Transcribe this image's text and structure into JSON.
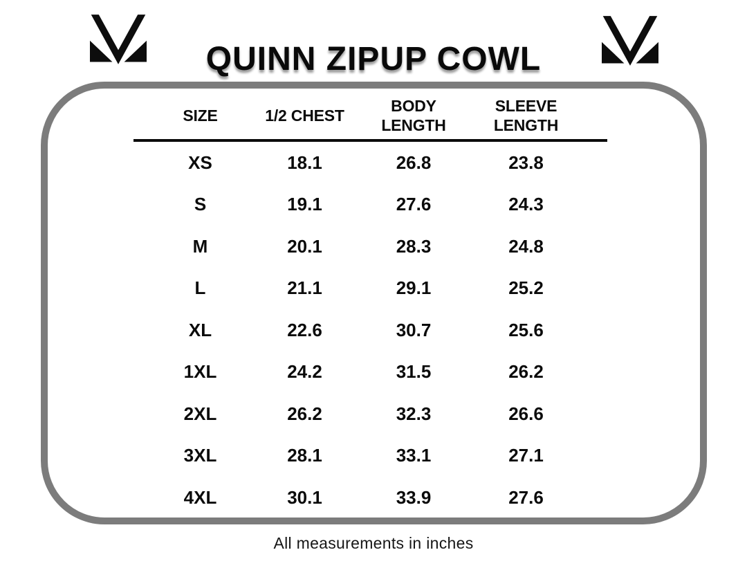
{
  "page": {
    "background_color": "#ffffff",
    "text_color": "#0b0b0b",
    "panel_border_color": "#7c7c7c",
    "title_shadow_color": "#9c9c9c"
  },
  "header": {
    "title": "QUINN ZIPUP COWL",
    "logo": "brand-m-monogram"
  },
  "chart_data": {
    "type": "table",
    "title": "QUINN ZIPUP COWL",
    "columns": [
      {
        "label": "SIZE",
        "lines": [
          "SIZE"
        ]
      },
      {
        "label": "1/2 CHEST",
        "lines": [
          "1/2 CHEST"
        ]
      },
      {
        "label": "BODY LENGTH",
        "lines": [
          "BODY",
          "LENGTH"
        ]
      },
      {
        "label": "SLEEVE LENGTH",
        "lines": [
          "SLEEVE",
          "LENGTH"
        ]
      }
    ],
    "rows": [
      [
        "XS",
        18.1,
        26.8,
        23.8
      ],
      [
        "S",
        19.1,
        27.6,
        24.3
      ],
      [
        "M",
        20.1,
        28.3,
        24.8
      ],
      [
        "L",
        21.1,
        29.1,
        25.2
      ],
      [
        "XL",
        22.6,
        30.7,
        25.6
      ],
      [
        "1XL",
        24.2,
        31.5,
        26.2
      ],
      [
        "2XL",
        26.2,
        32.3,
        26.6
      ],
      [
        "3XL",
        28.1,
        33.1,
        27.1
      ],
      [
        "4XL",
        30.1,
        33.9,
        27.6
      ]
    ],
    "units": "inches",
    "note": "All measurements in inches",
    "layout_hints": {
      "grid": false,
      "header_rule": true
    }
  },
  "footer": {
    "note": "All measurements in inches"
  }
}
